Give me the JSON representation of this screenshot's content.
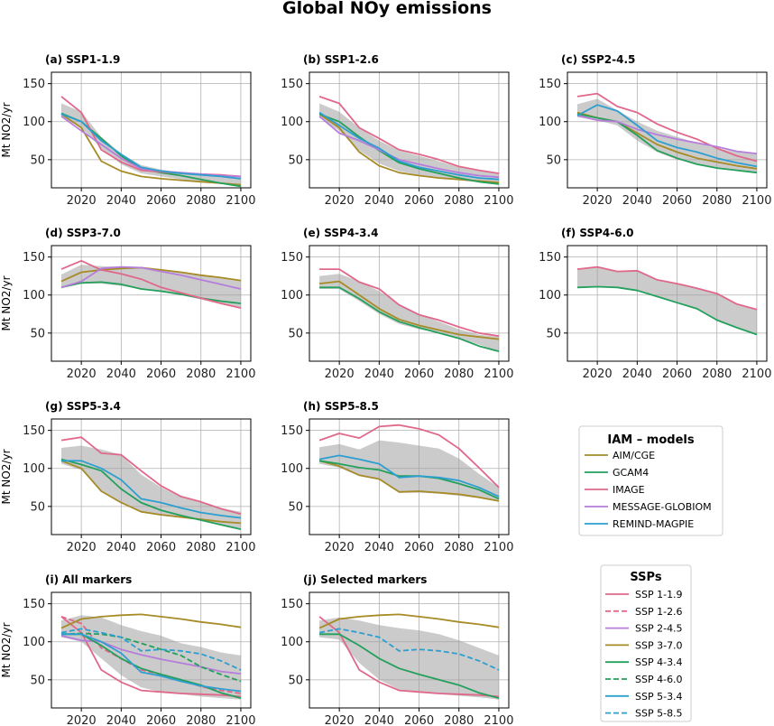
{
  "chart_data": {
    "title": "Global NOy emissions",
    "type": "line",
    "ylabel": "Mt NO2/yr",
    "x": [
      2010,
      2020,
      2030,
      2040,
      2050,
      2060,
      2070,
      2080,
      2090,
      2100
    ],
    "xticks": [
      2020,
      2040,
      2060,
      2080,
      2100
    ],
    "yticks": [
      50,
      100,
      150
    ],
    "xlim": [
      2005,
      2105
    ],
    "ylim": [
      13,
      165
    ],
    "grid": true,
    "model_colors": {
      "AIM/CGE": "#a68b26",
      "GCAM4": "#23a05b",
      "IMAGE": "#e0688a",
      "MESSAGE-GLOBIOM": "#b67ddb",
      "REMIND-MAGPIE": "#2c9fd0"
    },
    "panels": [
      {
        "title": "(a) SSP1-1.9",
        "range": {
          "low": [
            106,
            92,
            65,
            44,
            32,
            28,
            24,
            21,
            18,
            16
          ],
          "high": [
            124,
            113,
            80,
            58,
            43,
            37,
            33,
            31,
            29,
            28
          ]
        },
        "series": [
          {
            "model": "AIM/CGE",
            "values": [
              110,
              92,
              48,
              35,
              28,
              25,
              23,
              21,
              19,
              17
            ]
          },
          {
            "model": "GCAM4",
            "values": [
              111,
              100,
              78,
              55,
              38,
              33,
              29,
              24,
              19,
              15
            ]
          },
          {
            "model": "IMAGE",
            "values": [
              133,
              112,
              63,
              47,
              36,
              34,
              32,
              31,
              30,
              28
            ]
          },
          {
            "model": "MESSAGE-GLOBIOM",
            "values": [
              107,
              88,
              70,
              52,
              38,
              35,
              33,
              31,
              29,
              28
            ]
          },
          {
            "model": "REMIND-MAGPIE",
            "values": [
              110,
              100,
              75,
              57,
              40,
              35,
              32,
              30,
              28,
              25
            ]
          }
        ]
      },
      {
        "title": "(b) SSP1-2.6",
        "range": {
          "low": [
            105,
            88,
            62,
            45,
            35,
            30,
            26,
            23,
            20,
            18
          ],
          "high": [
            124,
            113,
            92,
            75,
            62,
            55,
            48,
            40,
            35,
            32
          ]
        },
        "series": [
          {
            "model": "AIM/CGE",
            "values": [
              110,
              92,
              60,
              42,
              33,
              29,
              26,
              24,
              22,
              20
            ]
          },
          {
            "model": "GCAM4",
            "values": [
              110,
              100,
              80,
              62,
              46,
              38,
              32,
              26,
              21,
              18
            ]
          },
          {
            "model": "IMAGE",
            "values": [
              133,
              124,
              92,
              78,
              63,
              57,
              50,
              41,
              36,
              32
            ]
          },
          {
            "model": "MESSAGE-GLOBIOM",
            "values": [
              107,
              85,
              75,
              63,
              50,
              44,
              38,
              33,
              29,
              27
            ]
          },
          {
            "model": "REMIND-MAGPIE",
            "values": [
              112,
              95,
              78,
              65,
              48,
              40,
              35,
              30,
              26,
              24
            ]
          }
        ]
      },
      {
        "title": "(c) SSP2-4.5",
        "range": {
          "low": [
            106,
            102,
            95,
            75,
            60,
            50,
            44,
            39,
            36,
            33
          ],
          "high": [
            123,
            130,
            115,
            100,
            88,
            80,
            72,
            65,
            60,
            58
          ]
        },
        "series": [
          {
            "model": "AIM/CGE",
            "values": [
              112,
              105,
              100,
              85,
              70,
              60,
              52,
              47,
              42,
              38
            ]
          },
          {
            "model": "GCAM4",
            "values": [
              110,
              105,
              100,
              82,
              62,
              52,
              44,
              39,
              36,
              33
            ]
          },
          {
            "model": "IMAGE",
            "values": [
              133,
              137,
              120,
              112,
              97,
              86,
              77,
              65,
              55,
              48
            ]
          },
          {
            "model": "MESSAGE-GLOBIOM",
            "values": [
              108,
              102,
              100,
              90,
              83,
              77,
              72,
              67,
              61,
              58
            ]
          },
          {
            "model": "REMIND-MAGPIE",
            "values": [
              108,
              122,
              114,
              95,
              75,
              66,
              60,
              52,
              46,
              41
            ]
          }
        ]
      },
      {
        "title": "(d) SSP3-7.0",
        "range": {
          "low": [
            110,
            115,
            115,
            112,
            108,
            104,
            100,
            94,
            88,
            82
          ],
          "high": [
            127,
            140,
            138,
            137,
            136,
            133,
            130,
            126,
            122,
            118
          ]
        },
        "series": [
          {
            "model": "AIM/CGE",
            "values": [
              118,
              130,
              133,
              135,
              136,
              133,
              130,
              126,
              123,
              119
            ]
          },
          {
            "model": "GCAM4",
            "values": [
              110,
              116,
              117,
              114,
              108,
              105,
              101,
              96,
              92,
              89
            ]
          },
          {
            "model": "IMAGE",
            "values": [
              134,
              145,
              133,
              128,
              121,
              110,
              103,
              96,
              89,
              83
            ]
          },
          {
            "model": "MESSAGE-GLOBIOM",
            "values": [
              110,
              118,
              135,
              137,
              136,
              131,
              126,
              120,
              114,
              108
            ]
          }
        ]
      },
      {
        "title": "(e) SSP4-3.4",
        "range": {
          "low": [
            108,
            108,
            92,
            75,
            62,
            55,
            50,
            43,
            35,
            26
          ],
          "high": [
            125,
            128,
            118,
            105,
            88,
            75,
            65,
            55,
            48,
            45
          ]
        },
        "series": [
          {
            "model": "AIM/CGE",
            "values": [
              115,
              118,
              100,
              82,
              68,
              60,
              54,
              48,
              45,
              42
            ]
          },
          {
            "model": "GCAM4",
            "values": [
              110,
              110,
              95,
              78,
              65,
              57,
              50,
              43,
              33,
              26
            ]
          },
          {
            "model": "IMAGE",
            "values": [
              134,
              134,
              117,
              108,
              87,
              74,
              67,
              58,
              50,
              46
            ]
          }
        ]
      },
      {
        "title": "(f) SSP4-6.0",
        "range": {
          "low": [
            110,
            111,
            110,
            106,
            98,
            90,
            82,
            67,
            57,
            48
          ],
          "high": [
            134,
            137,
            131,
            132,
            120,
            115,
            109,
            102,
            88,
            81
          ]
        },
        "series": [
          {
            "model": "GCAM4",
            "values": [
              110,
              111,
              110,
              106,
              98,
              90,
              82,
              67,
              57,
              48
            ]
          },
          {
            "model": "IMAGE",
            "values": [
              134,
              137,
              131,
              132,
              120,
              115,
              109,
              102,
              88,
              81
            ]
          }
        ]
      },
      {
        "title": "(g) SSP5-3.4",
        "range": {
          "low": [
            106,
            98,
            70,
            55,
            42,
            38,
            35,
            32,
            26,
            20
          ],
          "high": [
            127,
            130,
            125,
            118,
            92,
            75,
            62,
            55,
            48,
            43
          ]
        },
        "series": [
          {
            "model": "AIM/CGE",
            "values": [
              110,
              100,
              70,
              55,
              43,
              39,
              36,
              33,
              30,
              28
            ]
          },
          {
            "model": "GCAM4",
            "values": [
              112,
              105,
              97,
              73,
              55,
              45,
              38,
              32,
              26,
              20
            ]
          },
          {
            "model": "IMAGE",
            "values": [
              137,
              141,
              120,
              118,
              97,
              77,
              63,
              56,
              47,
              40
            ]
          },
          {
            "model": "REMIND-MAGPIE",
            "values": [
              110,
              110,
              100,
              85,
              60,
              55,
              48,
              42,
              38,
              35
            ]
          }
        ]
      },
      {
        "title": "(h) SSP5-8.5",
        "range": {
          "low": [
            106,
            101,
            90,
            85,
            68,
            68,
            67,
            64,
            61,
            57
          ],
          "high": [
            128,
            132,
            125,
            137,
            134,
            130,
            126,
            113,
            93,
            75
          ]
        },
        "series": [
          {
            "model": "AIM/CGE",
            "values": [
              110,
              103,
              91,
              86,
              69,
              70,
              68,
              66,
              62,
              57
            ]
          },
          {
            "model": "GCAM4",
            "values": [
              110,
              106,
              101,
              98,
              90,
              90,
              87,
              80,
              72,
              60
            ]
          },
          {
            "model": "IMAGE",
            "values": [
              137,
              146,
              140,
              155,
              157,
              152,
              144,
              126,
              101,
              75
            ]
          },
          {
            "model": "REMIND-MAGPIE",
            "values": [
              112,
              117,
              112,
              106,
              88,
              90,
              88,
              84,
              75,
              63
            ]
          }
        ]
      },
      {
        "title": "(i) All markers",
        "range": {
          "low": [
            106,
            100,
            78,
            56,
            40,
            34,
            31,
            28,
            26,
            24
          ],
          "high": [
            128,
            135,
            132,
            122,
            114,
            108,
            98,
            93,
            86,
            82
          ]
        },
        "series": [
          {
            "ssp": "SSP 1-1.9",
            "values": [
              133,
              112,
              63,
              47,
              36,
              34,
              32,
              31,
              30,
              28
            ]
          },
          {
            "ssp": "SSP 1-2.6",
            "values": [
              133,
              124,
              92,
              78,
              63,
              57,
              50,
              41,
              36,
              32
            ]
          },
          {
            "ssp": "SSP 2-4.5",
            "values": [
              108,
              102,
              100,
              90,
              83,
              77,
              72,
              67,
              61,
              58
            ]
          },
          {
            "ssp": "SSP 3-7.0",
            "values": [
              118,
              130,
              133,
              135,
              136,
              133,
              130,
              126,
              123,
              119
            ]
          },
          {
            "ssp": "SSP 4-3.4",
            "values": [
              110,
              110,
              95,
              78,
              65,
              57,
              50,
              43,
              33,
              26
            ]
          },
          {
            "ssp": "SSP 4-6.0",
            "values": [
              110,
              111,
              110,
              106,
              98,
              90,
              82,
              67,
              57,
              48
            ]
          },
          {
            "ssp": "SSP 5-3.4",
            "values": [
              110,
              110,
              100,
              85,
              60,
              55,
              48,
              42,
              38,
              35
            ]
          },
          {
            "ssp": "SSP 5-8.5",
            "values": [
              112,
              117,
              112,
              106,
              88,
              90,
              88,
              84,
              75,
              63
            ]
          }
        ]
      },
      {
        "title": "(j) Selected markers",
        "range": {
          "low": [
            106,
            103,
            72,
            50,
            37,
            34,
            31,
            29,
            27,
            24
          ],
          "high": [
            128,
            132,
            128,
            122,
            118,
            115,
            110,
            102,
            92,
            82
          ]
        },
        "series": [
          {
            "ssp": "SSP 1-1.9",
            "values": [
              133,
              112,
              63,
              47,
              36,
              34,
              32,
              31,
              30,
              28
            ]
          },
          {
            "ssp": "SSP 3-7.0",
            "values": [
              118,
              130,
              133,
              135,
              136,
              133,
              130,
              126,
              123,
              119
            ]
          },
          {
            "ssp": "SSP 4-3.4",
            "values": [
              110,
              110,
              95,
              78,
              65,
              57,
              50,
              43,
              33,
              26
            ]
          },
          {
            "ssp": "SSP 5-8.5",
            "values": [
              112,
              117,
              112,
              106,
              88,
              90,
              88,
              84,
              75,
              63
            ]
          }
        ]
      }
    ],
    "legend_models": {
      "title": "IAM – models",
      "placement": "right",
      "entries": [
        "AIM/CGE",
        "GCAM4",
        "IMAGE",
        "MESSAGE-GLOBIOM",
        "REMIND-MAGPIE"
      ]
    },
    "legend_ssps": {
      "title": "SSPs",
      "placement": "bottom-right",
      "entries": [
        {
          "label": "SSP 1-1.9",
          "color": "#e0688a",
          "dashed": false
        },
        {
          "label": "SSP 1-2.6",
          "color": "#e0688a",
          "dashed": true
        },
        {
          "label": "SSP 2-4.5",
          "color": "#b67ddb",
          "dashed": false
        },
        {
          "label": "SSP 3-7.0",
          "color": "#a68b26",
          "dashed": false
        },
        {
          "label": "SSP 4-3.4",
          "color": "#23a05b",
          "dashed": false
        },
        {
          "label": "SSP 4-6.0",
          "color": "#23a05b",
          "dashed": true
        },
        {
          "label": "SSP 5-3.4",
          "color": "#2c9fd0",
          "dashed": false
        },
        {
          "label": "SSP 5-8.5",
          "color": "#2c9fd0",
          "dashed": true
        }
      ]
    }
  }
}
